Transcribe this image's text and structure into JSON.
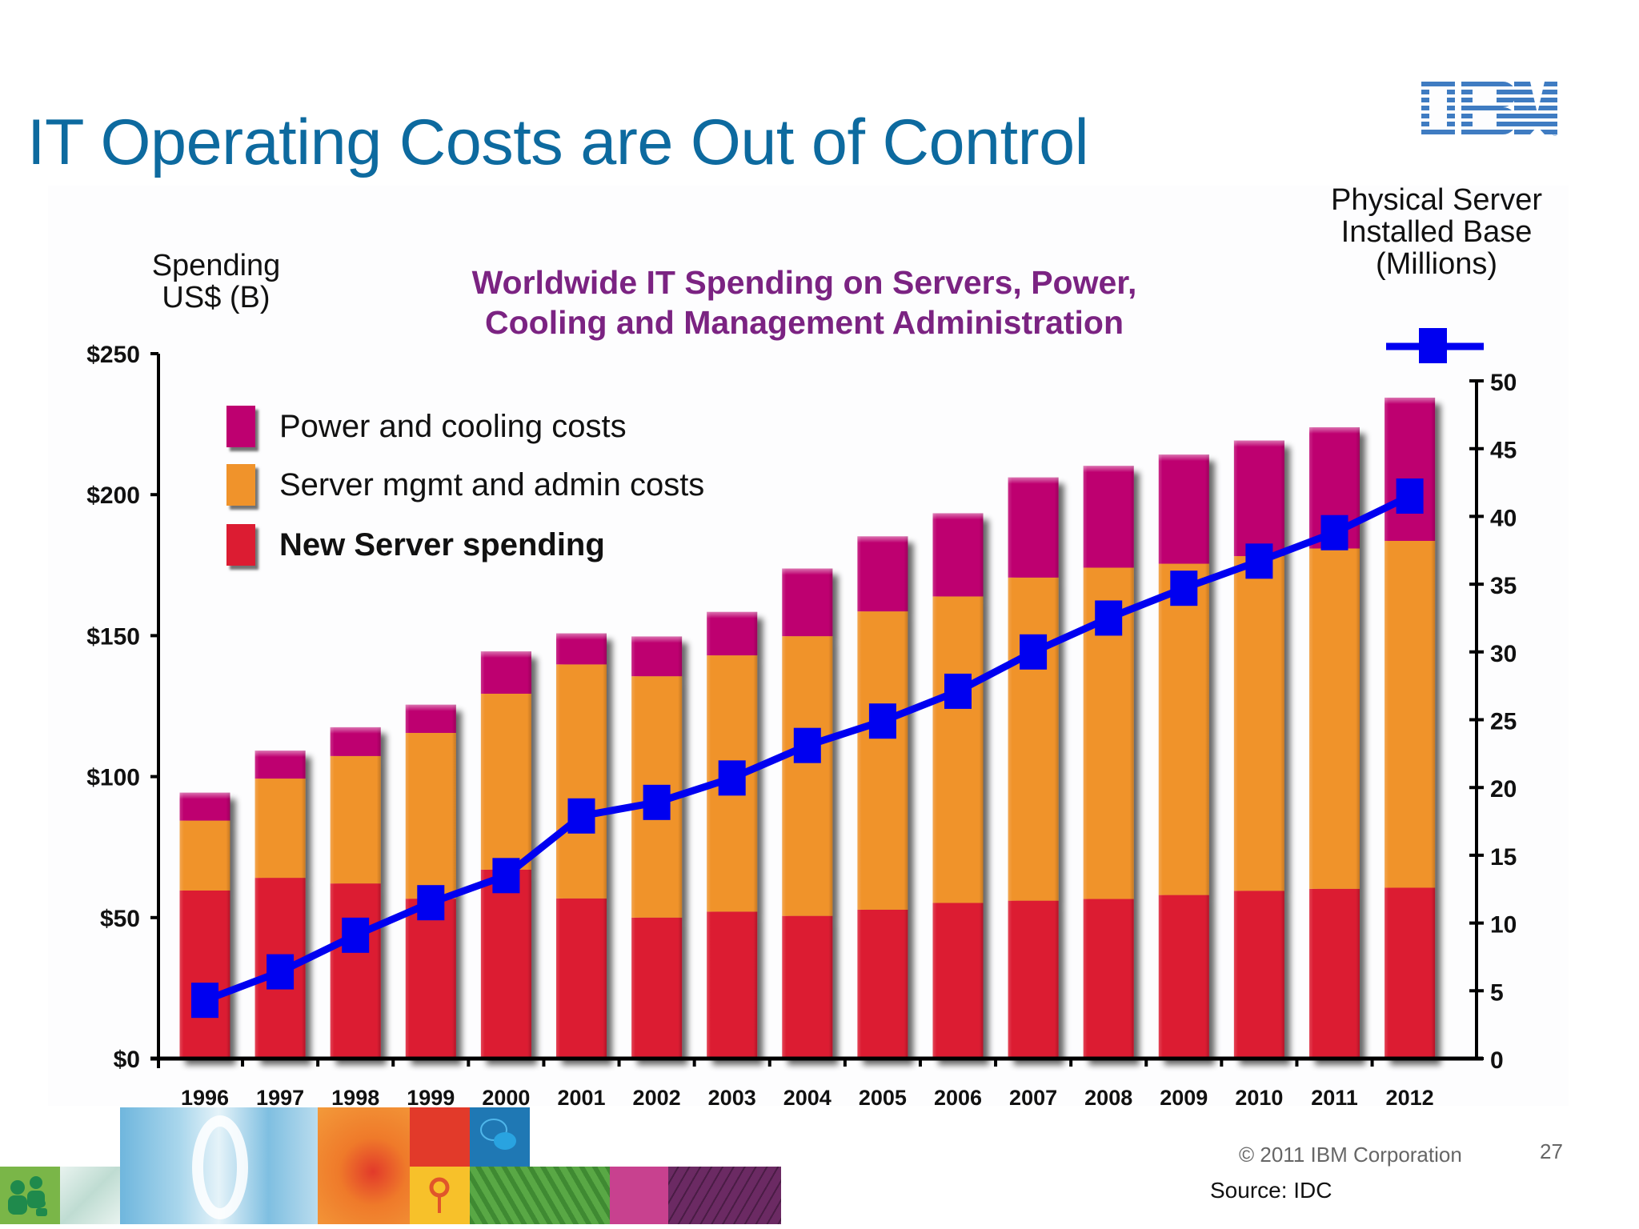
{
  "slide": {
    "title": "IT Operating Costs are Out of Control",
    "logo_text": "IBM",
    "copyright": "© 2011  IBM Corporation",
    "page_number": "27",
    "source": "Source: IDC"
  },
  "chart_data": {
    "type": "bar",
    "stacked": true,
    "title": "Worldwide IT Spending on Servers, Power, Cooling and Management Administration",
    "title_lines": [
      "Worldwide IT Spending on Servers, Power,",
      "Cooling and Management Administration"
    ],
    "xlabel": "",
    "ylabel": "Spending US$ (B)",
    "ylabel_lines": [
      "Spending",
      "US$ (B)"
    ],
    "y2label": "Physical Server Installed Base (Millions)",
    "y2label_lines": [
      "Physical Server",
      "Installed Base",
      "(Millions)"
    ],
    "ylim": [
      0,
      250
    ],
    "y2lim": [
      0,
      50
    ],
    "yticks": [
      0,
      50,
      100,
      150,
      200,
      250
    ],
    "ytick_labels": [
      "$0",
      "$50",
      "$100",
      "$150",
      "$200",
      "$250"
    ],
    "y2ticks": [
      0,
      5,
      10,
      15,
      20,
      25,
      30,
      35,
      40,
      45,
      50
    ],
    "y2tick_labels": [
      "0",
      "5",
      "10",
      "15",
      "20",
      "25",
      "30",
      "35",
      "40",
      "45",
      "50"
    ],
    "grid": false,
    "legend_position": "top-left",
    "categories": [
      "1996",
      "1997",
      "1998",
      "1999",
      "2000",
      "2001",
      "2002",
      "2003",
      "2004",
      "2005",
      "2006",
      "2007",
      "2008",
      "2009",
      "2010",
      "2011",
      "2012"
    ],
    "series": [
      {
        "name": "New Server spending",
        "type": "bar",
        "axis": "left",
        "color": "#dc1c32",
        "values": [
          59.6,
          64.1,
          62.1,
          56.7,
          67.0,
          56.8,
          50.0,
          52.1,
          50.6,
          52.8,
          55.2,
          56.0,
          56.6,
          58.0,
          59.5,
          60.2,
          60.6
        ]
      },
      {
        "name": "Server mgmt and admin costs",
        "type": "bar",
        "axis": "left",
        "color": "#f0932b",
        "values": [
          24.8,
          35.2,
          45.2,
          58.8,
          62.4,
          83.0,
          85.6,
          90.9,
          99.2,
          105.8,
          108.7,
          114.6,
          117.5,
          117.5,
          118.7,
          120.7,
          123.0
        ]
      },
      {
        "name": "Power and cooling costs",
        "type": "bar",
        "axis": "left",
        "color": "#be0070",
        "values": [
          9.9,
          9.9,
          10.2,
          10.0,
          15.0,
          11.0,
          14.1,
          15.4,
          24.0,
          26.6,
          29.5,
          35.5,
          36.1,
          38.7,
          41.0,
          43.0,
          50.8
        ]
      },
      {
        "name": "Physical Server Installed Base",
        "type": "line",
        "axis": "right",
        "color": "#0000f0",
        "marker": "square",
        "values": [
          4.3,
          6.4,
          9.1,
          11.5,
          13.5,
          17.9,
          18.9,
          20.7,
          23.1,
          24.9,
          27.1,
          30.0,
          32.5,
          34.7,
          36.7,
          38.8,
          41.5
        ]
      }
    ],
    "totals": [
      94.3,
      109.2,
      117.5,
      125.5,
      144.4,
      150.8,
      149.7,
      158.4,
      173.8,
      185.2,
      193.4,
      206.1,
      210.2,
      214.2,
      219.2,
      223.9,
      234.4
    ]
  },
  "legend": [
    {
      "label": "Power and cooling costs",
      "color": "#be0070",
      "bold": false
    },
    {
      "label": "Server mgmt and admin costs",
      "color": "#f0932b",
      "bold": false
    },
    {
      "label": "New Server spending",
      "color": "#dc1c32",
      "bold": true
    }
  ],
  "footer_tiles": [
    {
      "name": "people-icon-tile",
      "color": "#7ab648"
    },
    {
      "name": "sketch-tile",
      "color": "#cfe7e0"
    },
    {
      "name": "glass-door-photo-tile",
      "color": "#6fb6dd"
    },
    {
      "name": "orange-texture-tile",
      "color": "#ef7a2a"
    },
    {
      "name": "red-tile",
      "color": "#e23a2a"
    },
    {
      "name": "chat-icon-tile",
      "color": "#1f78b4"
    },
    {
      "name": "location-pin-tile",
      "color": "#f7c12a"
    },
    {
      "name": "green-grid-tile",
      "color": "#4b9a3a"
    },
    {
      "name": "pink-tile",
      "color": "#c8418f"
    },
    {
      "name": "purple-globe-tile",
      "color": "#6b2a63"
    }
  ]
}
